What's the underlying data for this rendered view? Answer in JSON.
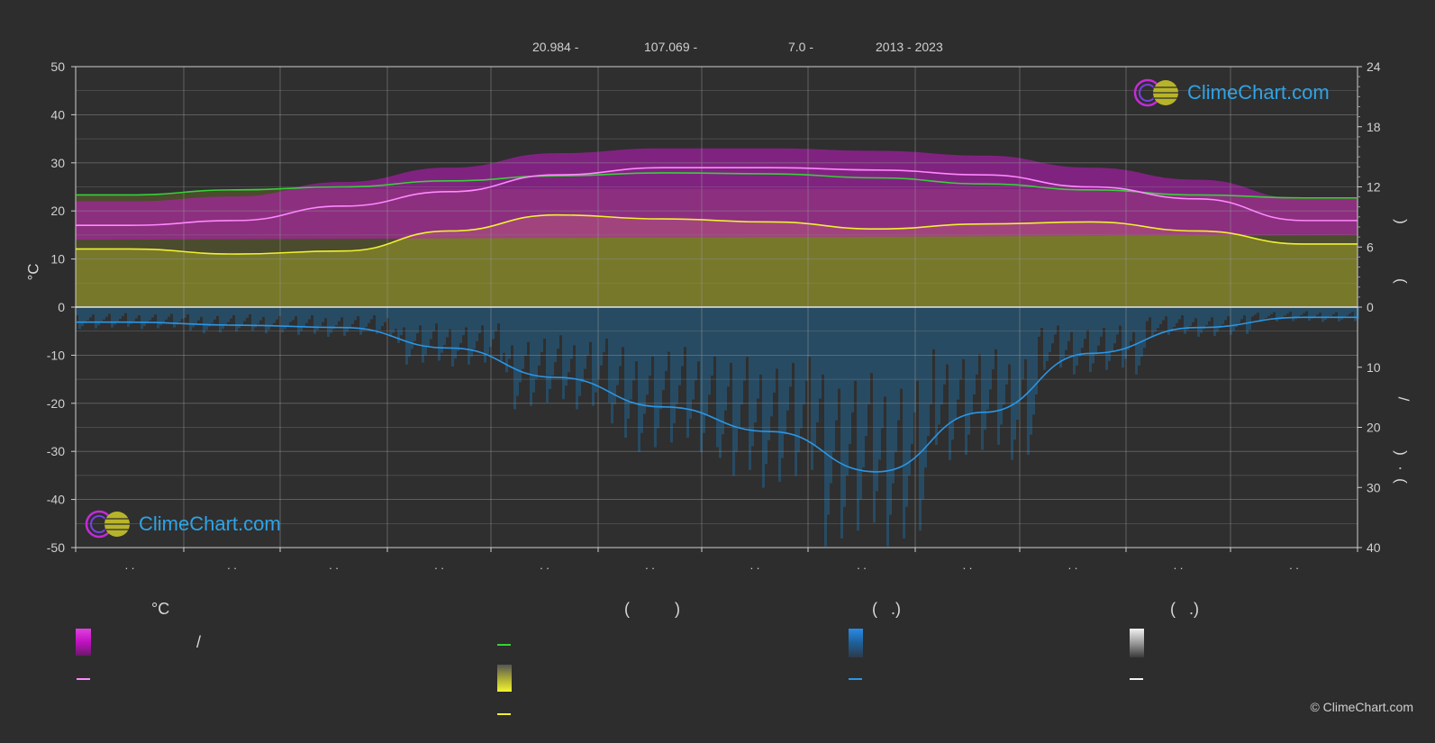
{
  "header": {
    "lat": "20.984 -",
    "lon": "107.069 -",
    "elev": "7.0 -",
    "years": "2013 - 2023"
  },
  "axes": {
    "left_title": "°C",
    "right_top_bracket_1": ")",
    "right_top_bracket_2": "(",
    "right_bottom_slash": "/",
    "right_bottom_bracket_1": ")",
    "right_bottom_bracket_2": "(",
    "right_bottom_dot": "."
  },
  "legend": {
    "col1_head": "°C",
    "col2_head": "(          )",
    "col3_head": "(   .)",
    "col4_head": "(   .)",
    "col1_row1_text": "/"
  },
  "logo_text": "ClimeChart.com",
  "copyright": "© ClimeChart.com",
  "colors": {
    "background": "#2d2d2d",
    "day_range_fill": "#c21ac2",
    "sunshine_fill": "#b0b02a",
    "precip_fill": "#1f6fa5",
    "daylight_line": "#38d038",
    "sunshine_line": "#f0f032",
    "max_temp_line": "#ff88ff",
    "precip_line": "#2a96e6"
  },
  "chart_data": {
    "type": "area",
    "left_axis": {
      "title": "°C",
      "ylim": [
        -50,
        50
      ],
      "ticks": [
        50,
        40,
        30,
        20,
        10,
        0,
        -10,
        -20,
        -30,
        -40,
        -50
      ]
    },
    "right_axis_top": {
      "ylim": [
        0,
        24
      ],
      "ticks": [
        24,
        18,
        12,
        6,
        0
      ]
    },
    "right_axis_bottom": {
      "ylim": [
        0,
        40
      ],
      "ticks": [
        0,
        10,
        20,
        30,
        40
      ]
    },
    "month_tick_labels": [
      ". .",
      ". .",
      ". .",
      ". .",
      ". .",
      ". .",
      ". .",
      ". .",
      ". .",
      ". .",
      ". .",
      ". ."
    ],
    "x": [
      0,
      1,
      2,
      3,
      4,
      5,
      6,
      7,
      8,
      9,
      10,
      11
    ],
    "series": [
      {
        "key": "daylight",
        "unit": "h",
        "axis": "right_top",
        "values": [
          11.2,
          11.7,
          12.0,
          12.6,
          13.1,
          13.4,
          13.3,
          12.9,
          12.3,
          11.7,
          11.2,
          10.9
        ]
      },
      {
        "key": "sunshine",
        "unit": "h",
        "axis": "right_top",
        "values": [
          5.8,
          5.3,
          5.6,
          7.6,
          9.2,
          8.8,
          8.5,
          7.8,
          8.3,
          8.5,
          7.6,
          6.3
        ]
      },
      {
        "key": "temp_line",
        "unit": "°C",
        "axis": "left",
        "values": [
          17.0,
          18.0,
          21.0,
          24.0,
          27.5,
          29.0,
          29.0,
          28.5,
          27.5,
          25.0,
          22.5,
          18.0
        ]
      },
      {
        "key": "temp_band_high",
        "unit": "°C",
        "axis": "left",
        "values": [
          22.0,
          23.0,
          26.0,
          29.0,
          32.0,
          33.0,
          33.0,
          32.5,
          31.5,
          29.0,
          26.5,
          22.5
        ]
      },
      {
        "key": "temp_band_low",
        "unit": "°C",
        "axis": "left",
        "values": [
          14.0,
          15.0,
          18.5,
          21.5,
          25.0,
          26.5,
          26.5,
          26.0,
          25.0,
          22.0,
          19.5,
          15.0
        ]
      },
      {
        "key": "precip_mm",
        "unit": "mm",
        "axis": "right_bottom",
        "values": [
          2.5,
          3.0,
          3.4,
          6.8,
          11.7,
          16.6,
          20.7,
          27.4,
          17.5,
          7.7,
          3.4,
          1.7
        ]
      }
    ]
  }
}
